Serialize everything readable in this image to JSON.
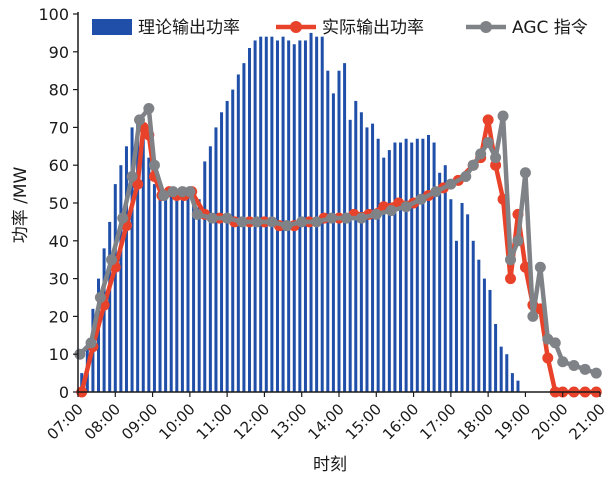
{
  "colors": {
    "bars": "#1f4fa8",
    "actual": "#e8432a",
    "agc": "#7f8286",
    "axis": "#1a1a1a"
  },
  "chart_data": {
    "type": "bar",
    "title": "",
    "xlabel": "时刻",
    "ylabel": "功率 /MW",
    "ylim": [
      0,
      100
    ],
    "xlim": [
      7,
      21
    ],
    "yticks": [
      0,
      10,
      20,
      30,
      40,
      50,
      60,
      70,
      80,
      90,
      100
    ],
    "xticks": [
      {
        "x": 7,
        "label": "07:00"
      },
      {
        "x": 8,
        "label": "08:00"
      },
      {
        "x": 9,
        "label": "09:00"
      },
      {
        "x": 10,
        "label": "10:00"
      },
      {
        "x": 11,
        "label": "11:00"
      },
      {
        "x": 12,
        "label": "12:00"
      },
      {
        "x": 13,
        "label": "13:00"
      },
      {
        "x": 14,
        "label": "14:00"
      },
      {
        "x": 15,
        "label": "15:00"
      },
      {
        "x": 16,
        "label": "16:00"
      },
      {
        "x": 17,
        "label": "17:00"
      },
      {
        "x": 18,
        "label": "18:00"
      },
      {
        "x": 19,
        "label": "19:00"
      },
      {
        "x": 20,
        "label": "20:00"
      },
      {
        "x": 21,
        "label": "21:00"
      }
    ],
    "grid": false,
    "legend_position": "top",
    "series": [
      {
        "name": "理论输出功率",
        "kind": "bar",
        "x": [
          7.1,
          7.25,
          7.4,
          7.55,
          7.7,
          7.85,
          8.0,
          8.15,
          8.3,
          8.45,
          8.6,
          8.75,
          8.9,
          9.05,
          9.2,
          9.35,
          9.5,
          9.65,
          9.8,
          9.95,
          10.1,
          10.25,
          10.4,
          10.55,
          10.7,
          10.85,
          11.0,
          11.15,
          11.3,
          11.45,
          11.6,
          11.75,
          11.9,
          12.05,
          12.2,
          12.35,
          12.5,
          12.65,
          12.8,
          12.95,
          13.1,
          13.25,
          13.4,
          13.55,
          13.7,
          13.85,
          14.0,
          14.15,
          14.3,
          14.45,
          14.6,
          14.75,
          14.9,
          15.05,
          15.2,
          15.35,
          15.5,
          15.65,
          15.8,
          15.95,
          16.1,
          16.25,
          16.4,
          16.55,
          16.7,
          16.85,
          17.0,
          17.15,
          17.3,
          17.45,
          17.6,
          17.75,
          17.9,
          18.05,
          18.2,
          18.35,
          18.5,
          18.65,
          18.8,
          18.95,
          19.1,
          19.25,
          19.4,
          19.55,
          19.7,
          19.85
        ],
        "values": [
          5,
          12,
          22,
          30,
          38,
          45,
          55,
          60,
          65,
          70,
          72,
          69,
          62,
          55,
          52,
          53,
          52,
          53,
          54,
          53,
          50,
          51,
          61,
          65,
          70,
          74,
          77,
          80,
          84,
          87,
          91,
          93,
          94,
          94,
          94,
          93,
          94,
          93,
          92,
          93,
          93,
          95,
          94,
          94,
          85,
          79,
          85,
          87,
          72,
          77,
          74,
          70,
          71,
          67,
          62,
          64,
          66,
          66,
          67,
          66,
          67,
          67,
          68,
          66,
          58,
          60,
          51,
          40,
          50,
          47,
          40,
          35,
          30,
          27,
          18,
          12,
          10,
          5,
          3,
          0,
          0,
          0,
          0,
          0,
          0,
          0
        ],
        "note": "dense vertical bars; values estimated from the plot"
      },
      {
        "name": "实际输出功率",
        "kind": "line",
        "x": [
          7.1,
          7.4,
          7.7,
          8.0,
          8.3,
          8.6,
          8.75,
          8.9,
          9.05,
          9.25,
          9.45,
          9.65,
          9.85,
          10.05,
          10.4,
          10.8,
          11.2,
          11.6,
          12.0,
          12.4,
          12.8,
          13.2,
          13.6,
          14.0,
          14.4,
          14.8,
          15.2,
          15.6,
          16.0,
          16.4,
          16.8,
          17.2,
          17.6,
          17.8,
          18.0,
          18.2,
          18.4,
          18.6,
          18.8,
          19.0,
          19.2,
          19.4,
          19.6,
          19.8,
          20.0,
          20.3,
          20.6,
          20.9
        ],
        "values": [
          0,
          12,
          23,
          33,
          44,
          55,
          70,
          68,
          57,
          52,
          53,
          52,
          52,
          53,
          47,
          46,
          45,
          45,
          45,
          44,
          44,
          45,
          46,
          46,
          47,
          47,
          49,
          50,
          50,
          52,
          54,
          56,
          60,
          62,
          72,
          60,
          51,
          30,
          47,
          33,
          23,
          22,
          9,
          0,
          0,
          0,
          0,
          0
        ]
      },
      {
        "name": "AGC 指令",
        "kind": "line",
        "x": [
          7.05,
          7.35,
          7.6,
          7.9,
          8.2,
          8.45,
          8.65,
          8.9,
          9.05,
          9.3,
          9.55,
          9.8,
          10.0,
          10.2,
          10.6,
          11.0,
          11.4,
          11.8,
          12.2,
          12.6,
          13.0,
          13.4,
          13.8,
          14.2,
          14.6,
          15.0,
          15.4,
          15.8,
          16.2,
          16.6,
          17.0,
          17.4,
          17.6,
          17.8,
          18.0,
          18.2,
          18.4,
          18.6,
          18.8,
          19.0,
          19.2,
          19.4,
          19.6,
          19.8,
          20.0,
          20.3,
          20.6,
          20.9
        ],
        "values": [
          10,
          13,
          25,
          35,
          46,
          57,
          72,
          75,
          60,
          52,
          53,
          53,
          53,
          47,
          46,
          46,
          45,
          45,
          45,
          44,
          45,
          45,
          46,
          46,
          46,
          47,
          48,
          49,
          51,
          53,
          55,
          57,
          60,
          63,
          66,
          62,
          73,
          35,
          40,
          58,
          20,
          33,
          14,
          13,
          8,
          7,
          6,
          5
        ]
      }
    ]
  }
}
